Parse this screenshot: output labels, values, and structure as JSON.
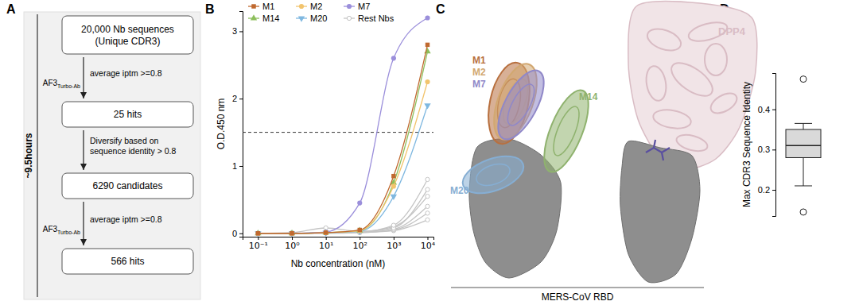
{
  "diagram": {
    "panel": "A",
    "duration": "~9.5hours",
    "boxes": [
      [
        "20,000 Nb sequences",
        "(Unique CDR3)"
      ],
      [
        "25 hits"
      ],
      [
        "6290 candidates"
      ],
      [
        "566 hits"
      ]
    ],
    "arrows": [
      {
        "tool": "AF3",
        "tool_sub": "Turbo-Ab",
        "text": [
          "average iptm >=0.8"
        ]
      },
      {
        "text": [
          "Diversify based on",
          "sequence identity > 0.8"
        ]
      },
      {
        "tool": "AF3",
        "tool_sub": "Turbo-Ab",
        "text": [
          "average iptm >=0.8"
        ]
      }
    ]
  },
  "chart_data": [
    {
      "panel": "B",
      "type": "line",
      "xlabel": "Nb concentration (nM)",
      "ylabel": "O.D.450 nm",
      "log": "x",
      "legend": "top",
      "x": [
        0.1,
        1,
        10,
        100,
        1000,
        10000
      ],
      "xlim": [
        0.035,
        15000
      ],
      "xticks": [
        {
          "value": 0.1,
          "label": "10⁻¹"
        },
        {
          "value": 1,
          "label": "10⁰"
        },
        {
          "value": 10,
          "label": "10¹"
        },
        {
          "value": 100,
          "label": "10²"
        },
        {
          "value": 1000,
          "label": "10³"
        },
        {
          "value": 10000,
          "label": "10⁴"
        }
      ],
      "ylim": [
        -0.05,
        3.3
      ],
      "yticks": [
        0,
        1,
        2,
        3
      ],
      "hline": 1.5,
      "series": [
        {
          "name": "M1",
          "color": "#c0692f",
          "marker": "square",
          "values": [
            0,
            0,
            0.01,
            0.05,
            0.85,
            2.8
          ]
        },
        {
          "name": "M2",
          "color": "#f2c46e",
          "marker": "circle",
          "values": [
            0,
            0,
            0.01,
            0.04,
            0.7,
            2.25
          ]
        },
        {
          "name": "M7",
          "color": "#9b8fdb",
          "marker": "circle",
          "values": [
            0,
            0,
            0.02,
            0.45,
            2.6,
            3.2
          ]
        },
        {
          "name": "M14",
          "color": "#8dbf5c",
          "marker": "triangle-up",
          "values": [
            0,
            0,
            0.01,
            0.04,
            0.75,
            2.7
          ]
        },
        {
          "name": "M20",
          "color": "#7fb8e0",
          "marker": "triangle-down",
          "values": [
            0,
            0,
            0.01,
            0.03,
            0.55,
            1.9
          ]
        },
        {
          "name": "Rest Nbs",
          "color": "#c4c4c4",
          "marker": "open-circle",
          "values": [
            0,
            0,
            0.01,
            0.02,
            0.12,
            0.8
          ]
        },
        {
          "color": "#c4c4c4",
          "marker": "open-circle",
          "values": [
            0,
            0,
            0.01,
            0.02,
            0.08,
            0.65
          ]
        },
        {
          "color": "#c4c4c4",
          "marker": "open-circle",
          "values": [
            0,
            0.01,
            0.08,
            0.03,
            0.1,
            0.55
          ]
        },
        {
          "color": "#c4c4c4",
          "marker": "open-circle",
          "values": [
            0,
            0,
            0.01,
            0.01,
            0.06,
            0.4
          ]
        },
        {
          "color": "#c4c4c4",
          "marker": "open-circle",
          "values": [
            0,
            0,
            0.01,
            0.02,
            0.05,
            0.3
          ]
        },
        {
          "color": "#c4c4c4",
          "marker": "open-circle",
          "values": [
            0,
            0,
            0,
            0.01,
            0.04,
            0.2
          ]
        }
      ]
    },
    {
      "panel": "D",
      "type": "box",
      "ylabel": "Max CDR3 Sequence Identity",
      "min": 0.21,
      "q1": 0.28,
      "median": 0.31,
      "q3": 0.35,
      "max": 0.365,
      "outliers": [
        0.475,
        0.145
      ],
      "ylim": [
        0.135,
        0.49
      ],
      "yticks": [
        0.2,
        0.3,
        0.4
      ],
      "color": "#d9d9d9"
    }
  ],
  "structure": {
    "panel": "C",
    "nanobodies": [
      {
        "name": "M1",
        "color": "#b8703f"
      },
      {
        "name": "M2",
        "color": "#d2a871"
      },
      {
        "name": "M7",
        "color": "#9088c8"
      },
      {
        "name": "M14",
        "color": "#8fb26e"
      },
      {
        "name": "M20",
        "color": "#86aed3"
      }
    ],
    "receptor": {
      "name": "DPP4",
      "color": "#d9bcc4"
    },
    "antigen": "MERS-CoV RBD"
  }
}
